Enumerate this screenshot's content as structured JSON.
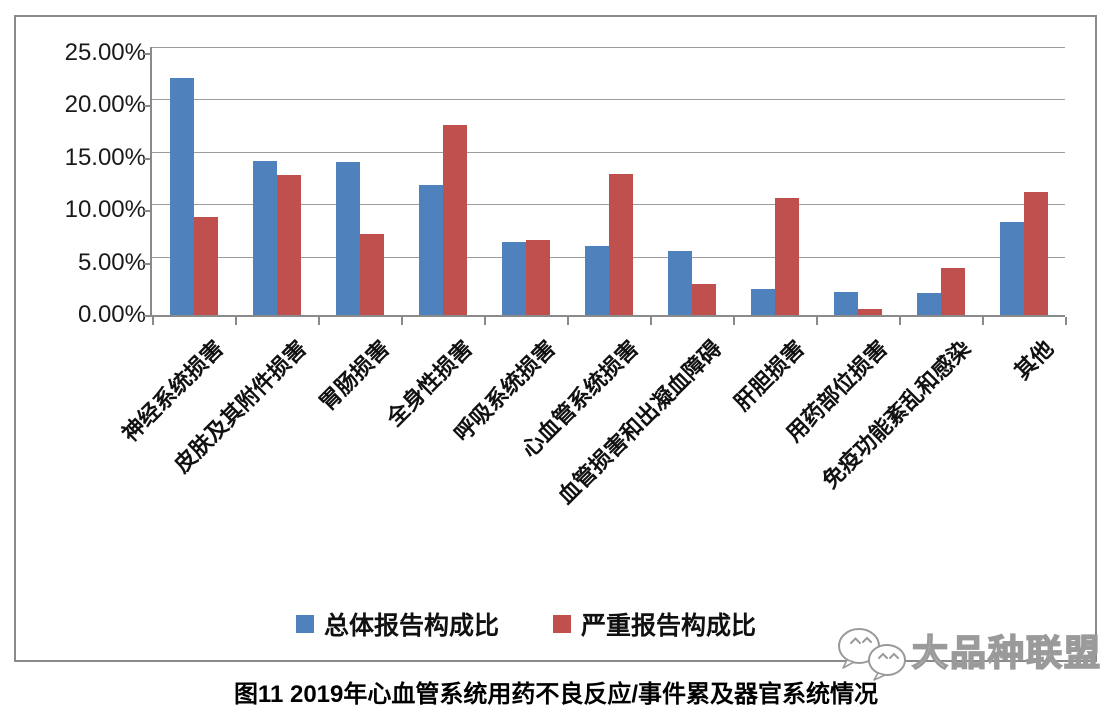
{
  "chart_data": {
    "type": "bar",
    "categories": [
      "神经系统损害",
      "皮肤及其附件损害",
      "胃肠损害",
      "全身性损害",
      "呼吸系统损害",
      "心血管系统损害",
      "血管损害和出凝血障碍",
      "肝胆损害",
      "用药部位损害",
      "免疫功能紊乱和感染",
      "其他"
    ],
    "series": [
      {
        "name": "总体报告构成比",
        "color": "#4F81BD",
        "values": [
          22.6,
          14.7,
          14.6,
          12.4,
          7.0,
          6.6,
          6.1,
          2.5,
          2.2,
          2.1,
          8.9
        ]
      },
      {
        "name": "严重报告构成比",
        "color": "#C0504D",
        "values": [
          9.4,
          13.4,
          7.7,
          18.1,
          7.2,
          13.5,
          3.0,
          11.2,
          0.6,
          4.5,
          11.7
        ]
      }
    ],
    "ylabel": "",
    "xlabel": "",
    "ylim": [
      0,
      25
    ],
    "ytick_step": 5,
    "ytick_labels": [
      "0.00%",
      "5.00%",
      "10.00%",
      "15.00%",
      "20.00%",
      "25.00%"
    ],
    "grid": true,
    "legend_position": "bottom",
    "title": "图11 2019年心血管系统用药不良反应/事件累及器官系统情况"
  },
  "caption": "图11 2019年心血管系统用药不良反应/事件累及器官系统情况",
  "watermark": {
    "text": "大品种联盟",
    "icon": "wechat-icon"
  },
  "colors": {
    "bar_blue": "#4F81BD",
    "bar_red": "#C0504D",
    "gridline": "#9c9c9c",
    "axis": "#8a8a8a",
    "frame_border": "#8a8a8a",
    "background": "#ffffff"
  }
}
